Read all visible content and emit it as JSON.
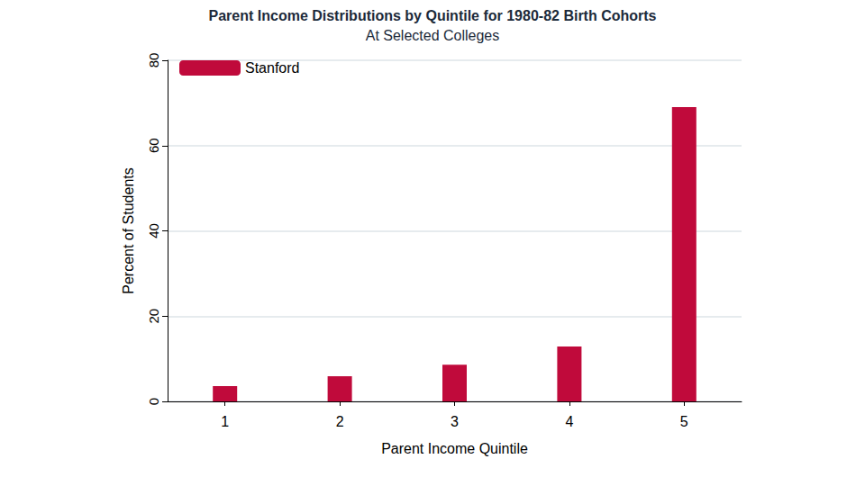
{
  "chart_data": {
    "type": "bar",
    "title": "Parent Income Distributions by Quintile for 1980-82 Birth Cohorts",
    "subtitle": "At Selected Colleges",
    "x_label": "Parent Income Quintile",
    "y_label": "Percent of Students",
    "categories": [
      "1",
      "2",
      "3",
      "4",
      "5"
    ],
    "series": [
      {
        "name": "Stanford",
        "color": "#c00a3b",
        "values": [
          3.6,
          5.9,
          8.6,
          12.9,
          69.0
        ]
      }
    ],
    "ylim": [
      0,
      80
    ],
    "yticks": [
      0,
      20,
      40,
      60,
      80
    ],
    "grid": true,
    "legend": "upper left"
  }
}
